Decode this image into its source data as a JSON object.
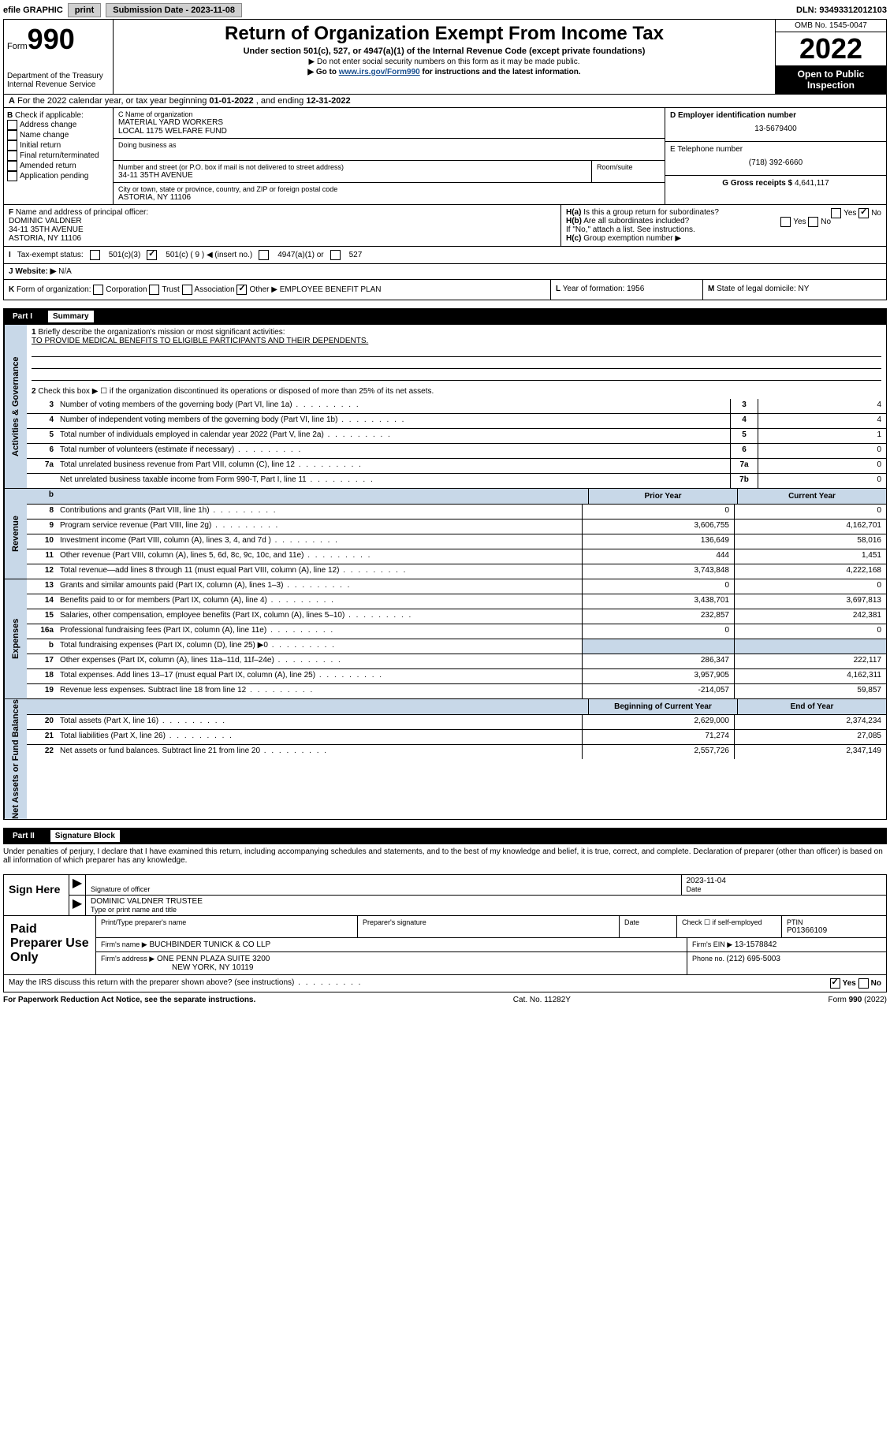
{
  "topbar": {
    "efile": "efile GRAPHIC",
    "print": "print",
    "subdate_label": "Submission Date - ",
    "subdate": "2023-11-08",
    "dln_label": "DLN: ",
    "dln": "93493312012103"
  },
  "header": {
    "form_prefix": "Form",
    "form_num": "990",
    "title": "Return of Organization Exempt From Income Tax",
    "subtitle": "Under section 501(c), 527, or 4947(a)(1) of the Internal Revenue Code (except private foundations)",
    "note1": "▶ Do not enter social security numbers on this form as it may be made public.",
    "note2_pre": "▶ Go to ",
    "note2_link": "www.irs.gov/Form990",
    "note2_post": " for instructions and the latest information.",
    "dept": "Department of the Treasury",
    "irs": "Internal Revenue Service",
    "omb": "OMB No. 1545-0047",
    "year": "2022",
    "inspection1": "Open to Public",
    "inspection2": "Inspection"
  },
  "period": {
    "a_label": "A",
    "text_pre": " For the 2022 calendar year, or tax year beginning ",
    "begin": "01-01-2022",
    "text_mid": " , and ending ",
    "end": "12-31-2022"
  },
  "sectionB": {
    "label": "B",
    "check": " Check if applicable:",
    "addr": "Address change",
    "name": "Name change",
    "initial": "Initial return",
    "final": "Final return/terminated",
    "amended": "Amended return",
    "app": "Application pending"
  },
  "sectionC": {
    "name_label": "C Name of organization",
    "name1": "MATERIAL YARD WORKERS",
    "name2": "LOCAL 1175 WELFARE FUND",
    "dba_label": "Doing business as",
    "street_label": "Number and street (or P.O. box if mail is not delivered to street address)",
    "room_label": "Room/suite",
    "street": "34-11 35TH AVENUE",
    "city_label": "City or town, state or province, country, and ZIP or foreign postal code",
    "city": "ASTORIA, NY  11106"
  },
  "sectionD": {
    "label": "D Employer identification number",
    "ein": "13-5679400",
    "e_label": "E Telephone number",
    "phone": "(718) 392-6660",
    "g_label": "G Gross receipts $ ",
    "g_val": "4,641,117"
  },
  "sectionF": {
    "label": "F",
    "text": " Name and address of principal officer:",
    "name": "DOMINIC VALDNER",
    "street": "34-11 35TH AVENUE",
    "city": "ASTORIA, NY  11106"
  },
  "sectionH": {
    "ha_label": "H(a)",
    "ha_text": " Is this a group return for subordinates?",
    "hb_label": "H(b)",
    "hb_text": " Are all subordinates included?",
    "note": "If \"No,\" attach a list. See instructions.",
    "hc_label": "H(c)",
    "hc_text": " Group exemption number ▶",
    "yes": "Yes",
    "no": "No"
  },
  "sectionI": {
    "label": "I",
    "text": "Tax-exempt status:",
    "opt1": "501(c)(3)",
    "opt2": "501(c) ( 9 ) ◀ (insert no.)",
    "opt3": "4947(a)(1) or",
    "opt4": "527"
  },
  "sectionJ": {
    "label": "J",
    "text": "Website: ▶",
    "val": "N/A"
  },
  "sectionK": {
    "label": "K",
    "text": " Form of organization:",
    "corp": "Corporation",
    "trust": "Trust",
    "assoc": "Association",
    "other": "Other ▶",
    "other_val": "EMPLOYEE BENEFIT PLAN",
    "l_label": "L",
    "l_text": " Year of formation: ",
    "l_val": "1956",
    "m_label": "M",
    "m_text": " State of legal domicile: ",
    "m_val": "NY"
  },
  "part1": {
    "label": "Part I",
    "title": "Summary",
    "q1_num": "1",
    "q1": "Briefly describe the organization's mission or most significant activities:",
    "q1_ans": "TO PROVIDE MEDICAL BENEFITS TO ELIGIBLE PARTICIPANTS AND THEIR DEPENDENTS.",
    "q2_num": "2",
    "q2": "Check this box ▶ ☐ if the organization discontinued its operations or disposed of more than 25% of its net assets.",
    "side_gov": "Activities & Governance",
    "side_rev": "Revenue",
    "side_exp": "Expenses",
    "side_net": "Net Assets or Fund Balances",
    "prior_year": "Prior Year",
    "current_year": "Current Year",
    "begin_year": "Beginning of Current Year",
    "end_year": "End of Year",
    "rows_gov": [
      {
        "n": "3",
        "d": "Number of voting members of the governing body (Part VI, line 1a)",
        "c": "3",
        "v": "4"
      },
      {
        "n": "4",
        "d": "Number of independent voting members of the governing body (Part VI, line 1b)",
        "c": "4",
        "v": "4"
      },
      {
        "n": "5",
        "d": "Total number of individuals employed in calendar year 2022 (Part V, line 2a)",
        "c": "5",
        "v": "1"
      },
      {
        "n": "6",
        "d": "Total number of volunteers (estimate if necessary)",
        "c": "6",
        "v": "0"
      },
      {
        "n": "7a",
        "d": "Total unrelated business revenue from Part VIII, column (C), line 12",
        "c": "7a",
        "v": "0"
      },
      {
        "n": "",
        "d": "Net unrelated business taxable income from Form 990-T, Part I, line 11",
        "c": "7b",
        "v": "0"
      }
    ],
    "rows_rev": [
      {
        "n": "8",
        "d": "Contributions and grants (Part VIII, line 1h)",
        "p": "0",
        "v": "0"
      },
      {
        "n": "9",
        "d": "Program service revenue (Part VIII, line 2g)",
        "p": "3,606,755",
        "v": "4,162,701"
      },
      {
        "n": "10",
        "d": "Investment income (Part VIII, column (A), lines 3, 4, and 7d )",
        "p": "136,649",
        "v": "58,016"
      },
      {
        "n": "11",
        "d": "Other revenue (Part VIII, column (A), lines 5, 6d, 8c, 9c, 10c, and 11e)",
        "p": "444",
        "v": "1,451"
      },
      {
        "n": "12",
        "d": "Total revenue—add lines 8 through 11 (must equal Part VIII, column (A), line 12)",
        "p": "3,743,848",
        "v": "4,222,168"
      }
    ],
    "rows_exp": [
      {
        "n": "13",
        "d": "Grants and similar amounts paid (Part IX, column (A), lines 1–3)",
        "p": "0",
        "v": "0"
      },
      {
        "n": "14",
        "d": "Benefits paid to or for members (Part IX, column (A), line 4)",
        "p": "3,438,701",
        "v": "3,697,813"
      },
      {
        "n": "15",
        "d": "Salaries, other compensation, employee benefits (Part IX, column (A), lines 5–10)",
        "p": "232,857",
        "v": "242,381"
      },
      {
        "n": "16a",
        "d": "Professional fundraising fees (Part IX, column (A), line 11e)",
        "p": "0",
        "v": "0"
      },
      {
        "n": "b",
        "d": "Total fundraising expenses (Part IX, column (D), line 25) ▶0",
        "p": "",
        "v": ""
      },
      {
        "n": "17",
        "d": "Other expenses (Part IX, column (A), lines 11a–11d, 11f–24e)",
        "p": "286,347",
        "v": "222,117"
      },
      {
        "n": "18",
        "d": "Total expenses. Add lines 13–17 (must equal Part IX, column (A), line 25)",
        "p": "3,957,905",
        "v": "4,162,311"
      },
      {
        "n": "19",
        "d": "Revenue less expenses. Subtract line 18 from line 12",
        "p": "-214,057",
        "v": "59,857"
      }
    ],
    "rows_net": [
      {
        "n": "20",
        "d": "Total assets (Part X, line 16)",
        "p": "2,629,000",
        "v": "2,374,234"
      },
      {
        "n": "21",
        "d": "Total liabilities (Part X, line 26)",
        "p": "71,274",
        "v": "27,085"
      },
      {
        "n": "22",
        "d": "Net assets or fund balances. Subtract line 21 from line 20",
        "p": "2,557,726",
        "v": "2,347,149"
      }
    ]
  },
  "part2": {
    "label": "Part II",
    "title": "Signature Block",
    "declaration": "Under penalties of perjury, I declare that I have examined this return, including accompanying schedules and statements, and to the best of my knowledge and belief, it is true, correct, and complete. Declaration of preparer (other than officer) is based on all information of which preparer has any knowledge.",
    "sign_here": "Sign Here",
    "sig_officer": "Signature of officer",
    "sig_date": "Date",
    "sig_date_val": "2023-11-04",
    "sig_name": "DOMINIC VALDNER  TRUSTEE",
    "sig_name_label": "Type or print name and title",
    "paid_prep": "Paid Preparer Use Only",
    "prep_name_label": "Print/Type preparer's name",
    "prep_sig_label": "Preparer's signature",
    "prep_date_label": "Date",
    "prep_check": "Check ☐ if self-employed",
    "ptin_label": "PTIN",
    "ptin": "P01366109",
    "firm_name_label": "Firm's name     ▶",
    "firm_name": "BUCHBINDER TUNICK & CO LLP",
    "firm_ein_label": "Firm's EIN ▶",
    "firm_ein": "13-1578842",
    "firm_addr_label": "Firm's address ▶",
    "firm_addr1": "ONE PENN PLAZA SUITE 3200",
    "firm_addr2": "NEW YORK, NY  10119",
    "phone_label": "Phone no. ",
    "phone": "(212) 695-5003",
    "discuss": "May the IRS discuss this return with the preparer shown above? (see instructions)",
    "yes": "Yes",
    "no": "No"
  },
  "footer": {
    "paperwork": "For Paperwork Reduction Act Notice, see the separate instructions.",
    "cat": "Cat. No. 11282Y",
    "form": "Form 990 (2022)"
  }
}
